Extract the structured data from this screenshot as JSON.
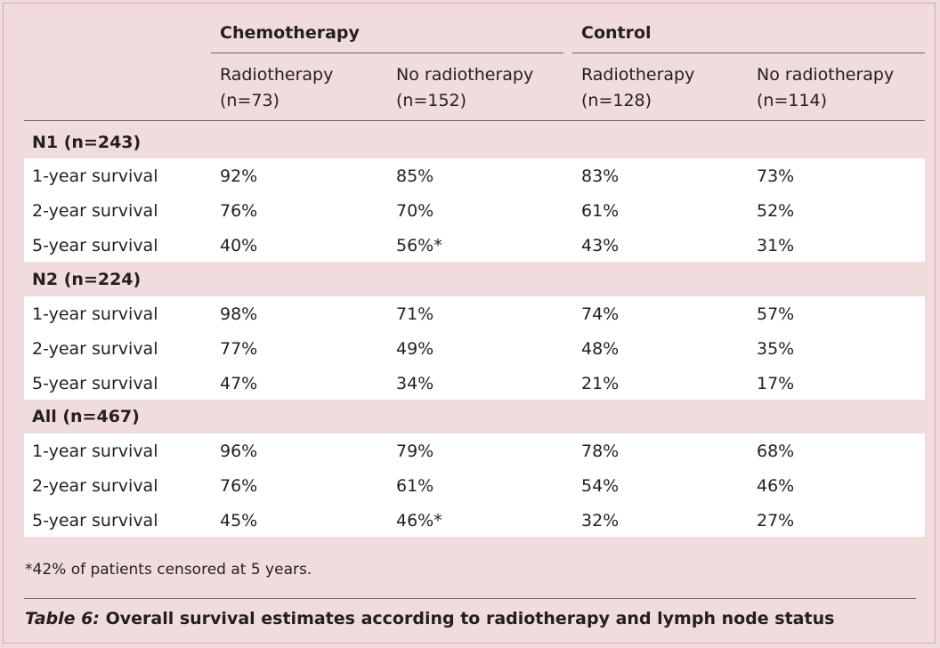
{
  "table": {
    "groups": [
      {
        "label": "Chemotherapy"
      },
      {
        "label": "Control"
      }
    ],
    "columns": [
      {
        "line1": "Radiotherapy",
        "line2": "(n=73)"
      },
      {
        "line1": "No radiotherapy",
        "line2": "(n=152)"
      },
      {
        "line1": "Radiotherapy",
        "line2": "(n=128)"
      },
      {
        "line1": "No radiotherapy",
        "line2": "(n=114)"
      }
    ],
    "sections": [
      {
        "title": "N1 (n=243)",
        "rows": [
          {
            "label": "1-year survival",
            "values": [
              "92%",
              "85%",
              "83%",
              "73%"
            ]
          },
          {
            "label": "2-year survival",
            "values": [
              "76%",
              "70%",
              "61%",
              "52%"
            ]
          },
          {
            "label": "5-year survival",
            "values": [
              "40%",
              "56%*",
              "43%",
              "31%"
            ]
          }
        ]
      },
      {
        "title": "N2 (n=224)",
        "rows": [
          {
            "label": "1-year survival",
            "values": [
              "98%",
              "71%",
              "74%",
              "57%"
            ]
          },
          {
            "label": "2-year survival",
            "values": [
              "77%",
              "49%",
              "48%",
              "35%"
            ]
          },
          {
            "label": "5-year survival",
            "values": [
              "47%",
              "34%",
              "21%",
              "17%"
            ]
          }
        ]
      },
      {
        "title": "All (n=467)",
        "rows": [
          {
            "label": "1-year survival",
            "values": [
              "96%",
              "79%",
              "78%",
              "68%"
            ]
          },
          {
            "label": "2-year survival",
            "values": [
              "76%",
              "61%",
              "54%",
              "46%"
            ]
          },
          {
            "label": "5-year survival",
            "values": [
              "45%",
              "46%*",
              "32%",
              "27%"
            ]
          }
        ]
      }
    ]
  },
  "footnote": "*42% of patients censored at 5 years.",
  "caption": {
    "label": "Table 6:",
    "text": " Overall survival estimates according to radiotherapy and lymph node status"
  }
}
